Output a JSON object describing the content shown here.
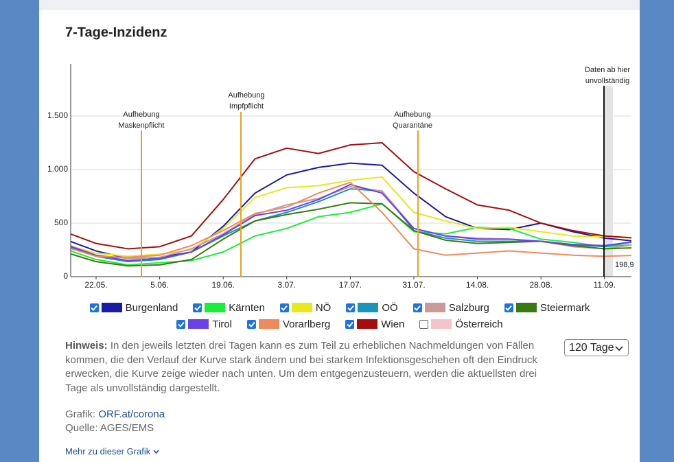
{
  "chart_data": {
    "type": "line",
    "title": "7-Tage-Inzidenz",
    "categories": [
      null,
      "22.05.",
      null,
      "5.06.",
      null,
      "19.06.",
      null,
      "3.07.",
      null,
      "17.07.",
      null,
      "31.07.",
      null,
      "14.08.",
      null,
      "28.08.",
      null,
      "11.09.",
      null
    ],
    "series": [
      {
        "name": "Burgenland",
        "color": "#1a1aa6",
        "values": [
          350,
          240,
          170,
          180,
          230,
          470,
          780,
          950,
          1020,
          1060,
          1040,
          780,
          560,
          450,
          440,
          500,
          420,
          360,
          330
        ]
      },
      {
        "name": "Kärnten",
        "color": "#1aee3a",
        "values": [
          260,
          160,
          110,
          130,
          150,
          230,
          380,
          450,
          560,
          600,
          680,
          420,
          400,
          460,
          450,
          350,
          320,
          280,
          300
        ]
      },
      {
        "name": "NÖ",
        "color": "#e8e81c",
        "values": [
          300,
          220,
          190,
          210,
          250,
          450,
          740,
          830,
          850,
          900,
          930,
          600,
          520,
          450,
          460,
          420,
          380,
          370,
          360
        ]
      },
      {
        "name": "OÖ",
        "color": "#1a94b8",
        "values": [
          290,
          190,
          140,
          160,
          230,
          380,
          520,
          600,
          700,
          820,
          800,
          430,
          360,
          330,
          330,
          330,
          300,
          280,
          330
        ]
      },
      {
        "name": "Salzburg",
        "color": "#cc9999",
        "values": [
          310,
          200,
          170,
          180,
          260,
          400,
          580,
          670,
          730,
          840,
          800,
          450,
          380,
          360,
          350,
          330,
          280,
          260,
          300
        ]
      },
      {
        "name": "Steiermark",
        "color": "#3a7a12",
        "values": [
          230,
          140,
          100,
          110,
          160,
          350,
          520,
          580,
          630,
          690,
          680,
          430,
          340,
          310,
          320,
          330,
          290,
          260,
          270
        ]
      },
      {
        "name": "Tirol",
        "color": "#6a42e8",
        "values": [
          300,
          200,
          150,
          170,
          230,
          390,
          570,
          620,
          720,
          860,
          780,
          450,
          380,
          350,
          350,
          330,
          300,
          290,
          330
        ]
      },
      {
        "name": "Vorarlberg",
        "color": "#f08a5c",
        "values": [
          280,
          190,
          180,
          200,
          290,
          430,
          590,
          650,
          780,
          880,
          600,
          260,
          200,
          220,
          240,
          220,
          200,
          190,
          198.9
        ],
        "value_labels": [
          null,
          null,
          null,
          null,
          null,
          null,
          null,
          null,
          null,
          null,
          null,
          null,
          null,
          null,
          null,
          null,
          null,
          null,
          "198,9"
        ]
      },
      {
        "name": "Wien",
        "color": "#a60d0d",
        "values": [
          420,
          310,
          260,
          280,
          380,
          720,
          1100,
          1200,
          1150,
          1230,
          1250,
          980,
          820,
          670,
          620,
          500,
          430,
          380,
          360
        ]
      }
    ],
    "hidden_series": [
      {
        "name": "Österreich",
        "color": "#f4c4cc"
      }
    ],
    "ylim": [
      0,
      2000
    ],
    "yticks": [
      0,
      500,
      {
        "value": 1000,
        "label": "1.000"
      },
      {
        "value": 1500,
        "label": "1.500"
      }
    ],
    "grid": true,
    "annotations": [
      {
        "lines": [
          "Aufhebung",
          "Maskenpflicht"
        ]
      },
      {
        "lines": [
          "Aufhebung",
          "Impfpflicht"
        ]
      },
      {
        "lines": [
          "Aufhebung",
          "Quarantäne"
        ]
      },
      {
        "lines": [
          "Daten ab hier",
          "unvollständig"
        ]
      }
    ]
  },
  "notes": {
    "hint_label": "Hinweis:",
    "hint_text": "In den jeweils letzten drei Tagen kann es zum Teil zu erheblichen Nachmeldungen von Fällen kommen, die den Verlauf der Kurve stark ändern und bei starkem Infektionsgeschehen oft den Eindruck erwecken, die Kurve zeige wieder nach unten. Um dem entgegenzusteuern, werden die aktuellsten drei Tage als unvollständig dargestellt.",
    "grafik_label": "Grafik:",
    "grafik_link": "ORF.at/corona",
    "quelle": "Quelle: AGES/EMS",
    "more": "Mehr zu dieser Grafik",
    "select": "120 Tage"
  }
}
